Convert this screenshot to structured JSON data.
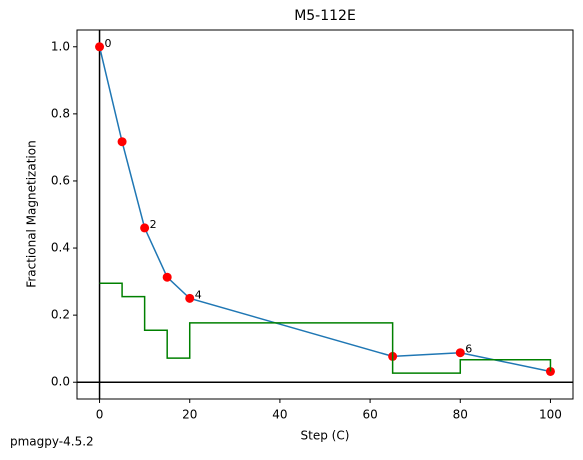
{
  "chart_data": {
    "type": "line",
    "title": "M5-112E",
    "x_label": "Step (C)",
    "y_label": "Fractional Magnetization",
    "footer": "pmagpy-4.5.2",
    "x": [
      0,
      5,
      10,
      15,
      20,
      65,
      80,
      100
    ],
    "series": [
      {
        "color": "#1f77b4",
        "marker_color": "#ff0000",
        "values": [
          1.0,
          0.717,
          0.46,
          0.313,
          0.25,
          0.077,
          0.088,
          0.032
        ],
        "point_labels": [
          "0",
          null,
          "2",
          null,
          "4",
          null,
          "6",
          null
        ]
      },
      {
        "color": "#008000",
        "step": true,
        "values": [
          0.295,
          0.255,
          0.155,
          0.072,
          0.177,
          0.027,
          0.067,
          0.032
        ]
      }
    ],
    "xlim": [
      -5,
      105
    ],
    "ylim": [
      -0.05,
      1.05
    ],
    "xticks": [
      0,
      20,
      40,
      60,
      80,
      100
    ],
    "yticks": [
      {
        "value": 0,
        "label": "0.0"
      },
      {
        "value": 0.2,
        "label": "0.2"
      },
      {
        "value": 0.4,
        "label": "0.4"
      },
      {
        "value": 0.6,
        "label": "0.6"
      },
      {
        "value": 0.8,
        "label": "0.8"
      },
      {
        "value": 1.0,
        "label": "1.0"
      }
    ],
    "zero_lines": true
  }
}
